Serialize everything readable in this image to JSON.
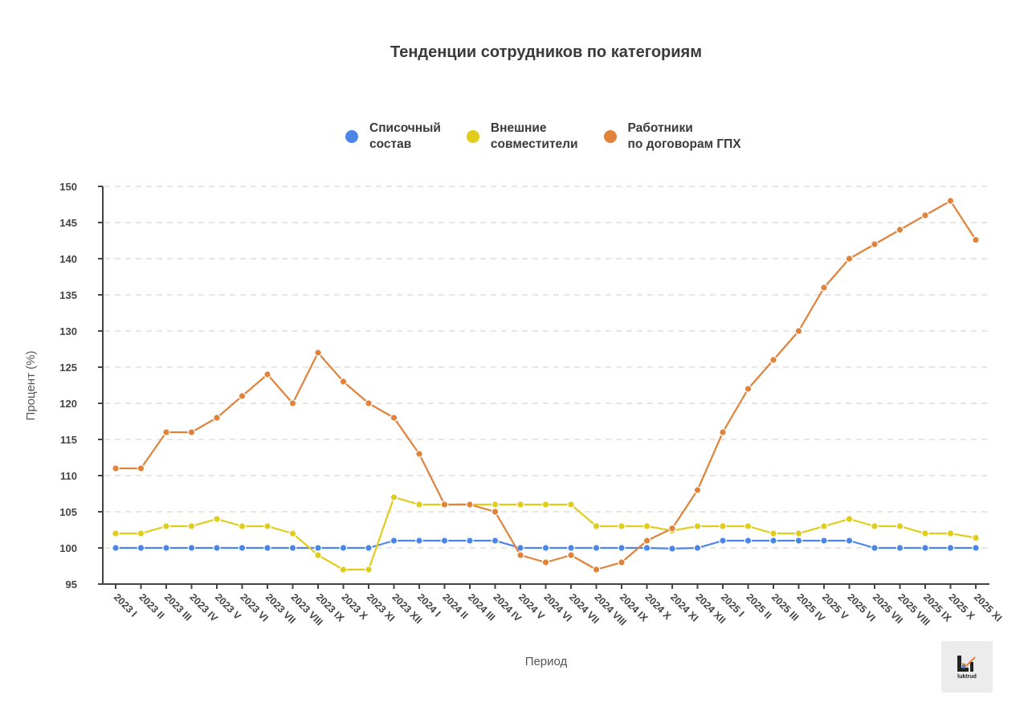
{
  "title": "Тенденции сотрудников по категориям",
  "legend": [
    {
      "label": "Списочный\nсостав",
      "color": "#4a86e8"
    },
    {
      "label": "Внешние\nсовместители",
      "color": "#e0cc1a"
    },
    {
      "label": "Работники\nпо договорам ГПХ",
      "color": "#e0823a"
    }
  ],
  "logo": {
    "text": "luktrud"
  },
  "chart_data": {
    "type": "line",
    "title": "Тенденции сотрудников по категориям",
    "xlabel": "Период",
    "ylabel": "Процент (%)",
    "ylim": [
      95,
      150
    ],
    "yticks": [
      95,
      100,
      105,
      110,
      115,
      120,
      125,
      130,
      135,
      140,
      145,
      150
    ],
    "grid": true,
    "legend_position": "top",
    "categories": [
      "2023 I",
      "2023 II",
      "2023 III",
      "2023 IV",
      "2023 V",
      "2023 VI",
      "2023 VII",
      "2023 VIII",
      "2023 IX",
      "2023 X",
      "2023 XI",
      "2023 XII",
      "2024 I",
      "2024 II",
      "2024 III",
      "2024 IV",
      "2024 V",
      "2024 VI",
      "2024 VII",
      "2024 VIII",
      "2024 IX",
      "2024 X",
      "2024 XI",
      "2024 XII",
      "2025 I",
      "2025 II",
      "2025 III",
      "2025 IV",
      "2025 V",
      "2025 VI",
      "2025 VII",
      "2025 VIII",
      "2025 IX",
      "2025 X",
      "2025 XI"
    ],
    "series": [
      {
        "name": "Списочный состав",
        "color": "#4a86e8",
        "values": [
          100,
          100,
          100,
          100,
          100,
          100,
          100,
          100,
          100,
          100,
          100,
          101,
          101,
          101,
          101,
          101,
          100,
          100,
          100,
          100,
          100,
          100,
          99.9,
          100,
          101,
          101,
          101,
          101,
          101,
          101,
          100,
          100,
          100,
          100,
          100
        ]
      },
      {
        "name": "Внешние совместители",
        "color": "#e0cc1a",
        "values": [
          102,
          102,
          103,
          103,
          104,
          103,
          103,
          102,
          99,
          97,
          97,
          107,
          106,
          106,
          106,
          106,
          106,
          106,
          106,
          103,
          103,
          103,
          102.4,
          103,
          103,
          103,
          102,
          102,
          103,
          104,
          103,
          103,
          102,
          102,
          101.4
        ]
      },
      {
        "name": "Работники по договорам ГПХ",
        "color": "#e0823a",
        "values": [
          111,
          111,
          116,
          116,
          118,
          121,
          124,
          120,
          127,
          123,
          120,
          118,
          113,
          106,
          106,
          105,
          99,
          98,
          99,
          97,
          98,
          101,
          102.7,
          108,
          116,
          122,
          126,
          130,
          136,
          140,
          142,
          144,
          146,
          148,
          142.6
        ]
      }
    ]
  }
}
